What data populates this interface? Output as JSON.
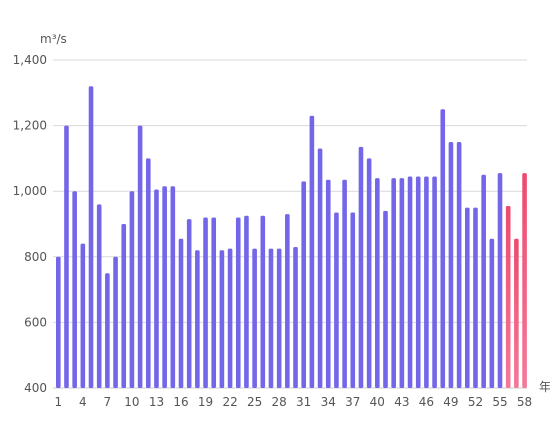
{
  "chart_data": {
    "type": "bar",
    "ylabel": "m³/s",
    "xlabel_fragment": "年",
    "ylim": [
      400,
      1400
    ],
    "yticks": [
      "400",
      "600",
      "800",
      "1,000",
      "1,200",
      "1,400"
    ],
    "yticks_values": [
      400,
      600,
      800,
      1000,
      1200,
      1400
    ],
    "grid": true,
    "x_tick_labels": [
      "1",
      "4",
      "7",
      "10",
      "13",
      "16",
      "19",
      "22",
      "25",
      "28",
      "31",
      "34",
      "37",
      "40",
      "43",
      "46",
      "49",
      "52",
      "55",
      "58"
    ],
    "categories": [
      "1",
      "2",
      "3",
      "4",
      "5",
      "6",
      "7",
      "8",
      "9",
      "10",
      "11",
      "12",
      "13",
      "14",
      "15",
      "16",
      "17",
      "18",
      "19",
      "20",
      "21",
      "22",
      "23",
      "24",
      "25",
      "26",
      "27",
      "28",
      "29",
      "30",
      "31",
      "32",
      "33",
      "34",
      "35",
      "36",
      "37",
      "38",
      "39",
      "40",
      "41",
      "42",
      "43",
      "44",
      "45",
      "46",
      "47",
      "48",
      "49",
      "50",
      "51",
      "52",
      "53",
      "54",
      "55",
      "56",
      "57",
      "58"
    ],
    "values": [
      800,
      1200,
      1000,
      840,
      1320,
      960,
      750,
      800,
      900,
      1000,
      1200,
      1100,
      1005,
      1015,
      1015,
      855,
      915,
      820,
      920,
      920,
      820,
      825,
      920,
      925,
      825,
      925,
      825,
      825,
      930,
      830,
      1030,
      1230,
      1130,
      1035,
      935,
      1035,
      935,
      1135,
      1100,
      1040,
      940,
      1040,
      1040,
      1045,
      1045,
      1045,
      1045,
      1250,
      1150,
      1150,
      950,
      950,
      1050,
      855,
      1055,
      955,
      855,
      1055
    ],
    "highlight_from_category": "56",
    "colors": {
      "bar": "#7366e8",
      "highlight_top": "#ee4a6e",
      "highlight_bottom": "#f37a99",
      "grid": "#d9d9d9",
      "axis": "#cccccc",
      "text": "#555555"
    }
  }
}
